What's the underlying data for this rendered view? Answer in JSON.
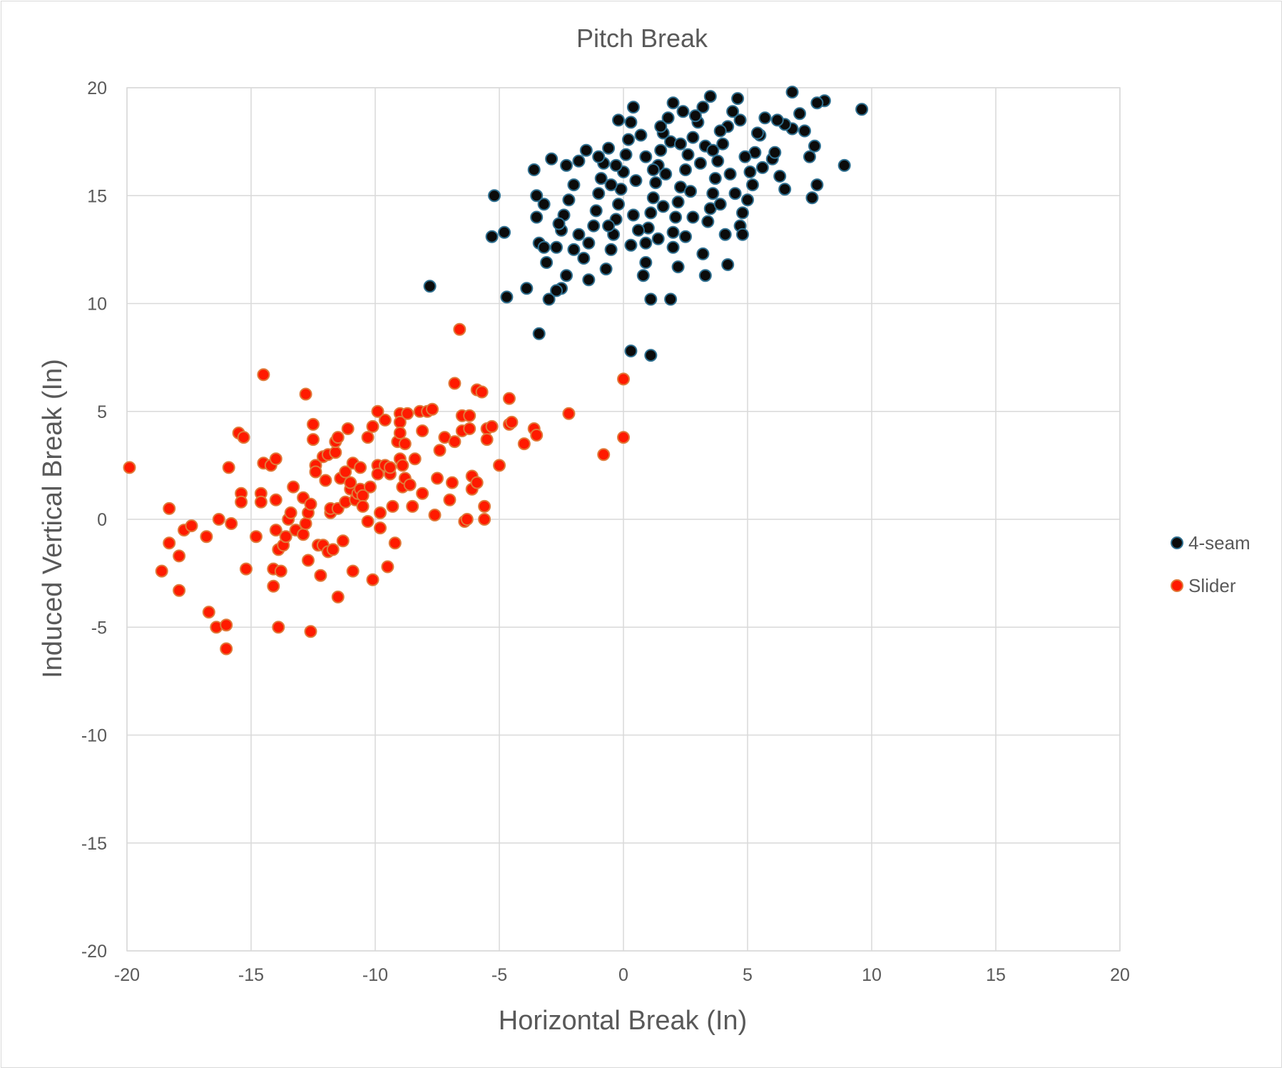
{
  "chart_data": {
    "type": "scatter",
    "title": "Pitch Break",
    "xlabel": "Horizontal Break (In)",
    "ylabel": "Induced Vertical Break (In)",
    "xlim": [
      -20,
      20
    ],
    "ylim": [
      -20,
      20
    ],
    "xticks": [
      "-20",
      "-15",
      "-10",
      "-5",
      "0",
      "5",
      "10",
      "15",
      "20"
    ],
    "yticks": [
      "20",
      "15",
      "10",
      "5",
      "0",
      "-5",
      "-10",
      "-15",
      "-20"
    ],
    "grid": true,
    "legend_position": "right",
    "series": [
      {
        "name": "4-seam",
        "color": "#0b0b0b",
        "edge_color": "#2f6f8f",
        "points": [
          [
            6.8,
            19.8
          ],
          [
            9.6,
            19.0
          ],
          [
            8.1,
            19.4
          ],
          [
            7.8,
            19.3
          ],
          [
            8.9,
            16.4
          ],
          [
            7.7,
            17.3
          ],
          [
            7.8,
            15.5
          ],
          [
            7.6,
            14.9
          ],
          [
            7.3,
            18.0
          ],
          [
            7.1,
            18.8
          ],
          [
            6.8,
            18.1
          ],
          [
            6.5,
            18.3
          ],
          [
            6.2,
            18.5
          ],
          [
            6.0,
            16.7
          ],
          [
            6.3,
            15.9
          ],
          [
            6.5,
            15.3
          ],
          [
            5.7,
            18.6
          ],
          [
            5.5,
            17.8
          ],
          [
            5.3,
            17.0
          ],
          [
            5.1,
            16.1
          ],
          [
            5.2,
            15.5
          ],
          [
            5.0,
            14.8
          ],
          [
            4.8,
            14.2
          ],
          [
            4.7,
            13.6
          ],
          [
            4.8,
            13.2
          ],
          [
            4.6,
            19.5
          ],
          [
            4.4,
            18.9
          ],
          [
            4.2,
            18.2
          ],
          [
            4.0,
            17.4
          ],
          [
            3.8,
            16.6
          ],
          [
            3.7,
            15.8
          ],
          [
            3.6,
            15.1
          ],
          [
            3.5,
            14.4
          ],
          [
            3.4,
            13.8
          ],
          [
            3.2,
            12.3
          ],
          [
            3.3,
            11.3
          ],
          [
            4.2,
            11.8
          ],
          [
            3.5,
            19.6
          ],
          [
            3.2,
            19.1
          ],
          [
            3.0,
            18.4
          ],
          [
            2.8,
            17.7
          ],
          [
            2.6,
            16.9
          ],
          [
            2.5,
            16.2
          ],
          [
            2.3,
            15.4
          ],
          [
            2.2,
            14.7
          ],
          [
            2.1,
            14.0
          ],
          [
            2.0,
            13.3
          ],
          [
            2.2,
            11.7
          ],
          [
            1.9,
            10.2
          ],
          [
            2.0,
            19.3
          ],
          [
            1.8,
            18.6
          ],
          [
            1.6,
            17.9
          ],
          [
            1.5,
            17.1
          ],
          [
            1.4,
            16.4
          ],
          [
            1.3,
            15.6
          ],
          [
            1.2,
            14.9
          ],
          [
            1.1,
            14.2
          ],
          [
            1.0,
            13.5
          ],
          [
            0.9,
            12.8
          ],
          [
            0.9,
            11.9
          ],
          [
            0.8,
            11.3
          ],
          [
            1.1,
            10.2
          ],
          [
            0.3,
            7.8
          ],
          [
            1.1,
            7.6
          ],
          [
            0.4,
            19.1
          ],
          [
            0.3,
            18.4
          ],
          [
            0.2,
            17.6
          ],
          [
            0.1,
            16.9
          ],
          [
            0.0,
            16.1
          ],
          [
            -0.1,
            15.3
          ],
          [
            -0.2,
            14.6
          ],
          [
            -0.3,
            13.9
          ],
          [
            -0.4,
            13.2
          ],
          [
            -0.5,
            12.5
          ],
          [
            -0.6,
            17.2
          ],
          [
            -0.8,
            16.5
          ],
          [
            -0.9,
            15.8
          ],
          [
            -1.0,
            15.1
          ],
          [
            -1.1,
            14.3
          ],
          [
            -1.2,
            13.6
          ],
          [
            -1.4,
            12.8
          ],
          [
            -1.6,
            12.1
          ],
          [
            -1.4,
            11.1
          ],
          [
            -0.7,
            11.6
          ],
          [
            -1.5,
            17.1
          ],
          [
            -1.8,
            16.6
          ],
          [
            -2.0,
            15.5
          ],
          [
            -2.2,
            14.8
          ],
          [
            -2.4,
            14.1
          ],
          [
            -2.5,
            13.4
          ],
          [
            -2.7,
            12.6
          ],
          [
            -2.3,
            11.3
          ],
          [
            -2.5,
            10.7
          ],
          [
            -2.7,
            10.6
          ],
          [
            -3.0,
            10.2
          ],
          [
            -2.3,
            16.4
          ],
          [
            -2.9,
            16.7
          ],
          [
            -3.2,
            14.6
          ],
          [
            -3.5,
            14.0
          ],
          [
            -3.4,
            12.8
          ],
          [
            -3.1,
            11.9
          ],
          [
            -3.9,
            10.7
          ],
          [
            -4.7,
            10.3
          ],
          [
            -3.4,
            8.6
          ],
          [
            -3.6,
            16.2
          ],
          [
            -3.5,
            15.0
          ],
          [
            -3.2,
            12.6
          ],
          [
            -4.8,
            13.3
          ],
          [
            -5.3,
            13.1
          ],
          [
            -5.2,
            15.0
          ],
          [
            -7.8,
            10.8
          ],
          [
            2.4,
            18.9
          ],
          [
            2.9,
            18.7
          ],
          [
            3.9,
            18.0
          ],
          [
            1.5,
            18.2
          ],
          [
            0.7,
            17.8
          ],
          [
            4.9,
            16.8
          ],
          [
            5.6,
            16.3
          ],
          [
            4.3,
            16.0
          ],
          [
            3.1,
            16.5
          ],
          [
            1.7,
            16.0
          ],
          [
            0.5,
            15.7
          ],
          [
            -0.3,
            16.4
          ],
          [
            2.7,
            15.2
          ],
          [
            1.6,
            14.5
          ],
          [
            0.4,
            14.1
          ],
          [
            3.9,
            14.6
          ],
          [
            4.5,
            15.1
          ],
          [
            2.5,
            13.1
          ],
          [
            1.4,
            13.0
          ],
          [
            0.3,
            12.7
          ],
          [
            -0.6,
            13.6
          ],
          [
            -1.8,
            13.2
          ],
          [
            -2.0,
            12.5
          ],
          [
            3.3,
            17.3
          ],
          [
            1.9,
            17.5
          ],
          [
            0.9,
            16.8
          ],
          [
            -0.5,
            15.5
          ],
          [
            5.4,
            17.9
          ],
          [
            6.1,
            17.0
          ],
          [
            7.5,
            16.8
          ],
          [
            2.0,
            12.6
          ],
          [
            -1.0,
            16.8
          ],
          [
            -0.2,
            18.5
          ],
          [
            2.8,
            14.0
          ],
          [
            4.1,
            13.2
          ],
          [
            1.2,
            16.2
          ],
          [
            2.3,
            17.4
          ],
          [
            3.6,
            17.1
          ],
          [
            0.6,
            13.4
          ],
          [
            -2.6,
            13.7
          ],
          [
            4.7,
            18.5
          ]
        ]
      },
      {
        "name": "Slider",
        "color": "#ff1a00",
        "edge_color": "#e07a3a",
        "points": [
          [
            -19.9,
            2.4
          ],
          [
            -18.6,
            -2.4
          ],
          [
            -18.3,
            0.5
          ],
          [
            -18.3,
            -1.1
          ],
          [
            -17.9,
            -1.7
          ],
          [
            -17.9,
            -3.3
          ],
          [
            -17.7,
            -0.5
          ],
          [
            -17.4,
            -0.3
          ],
          [
            -16.8,
            -0.8
          ],
          [
            -16.7,
            -4.3
          ],
          [
            -16.4,
            -5.0
          ],
          [
            -16.3,
            0.0
          ],
          [
            -16.0,
            -4.9
          ],
          [
            -16.0,
            -6.0
          ],
          [
            -15.9,
            2.4
          ],
          [
            -15.8,
            -0.2
          ],
          [
            -15.5,
            4.0
          ],
          [
            -15.3,
            3.8
          ],
          [
            -15.4,
            1.2
          ],
          [
            -15.4,
            0.8
          ],
          [
            -15.2,
            -2.3
          ],
          [
            -14.8,
            -0.8
          ],
          [
            -14.6,
            1.2
          ],
          [
            -14.6,
            0.8
          ],
          [
            -14.5,
            2.6
          ],
          [
            -14.5,
            6.7
          ],
          [
            -14.2,
            2.5
          ],
          [
            -14.1,
            -2.3
          ],
          [
            -14.1,
            -3.1
          ],
          [
            -14.0,
            2.8
          ],
          [
            -14.0,
            0.9
          ],
          [
            -14.0,
            -0.5
          ],
          [
            -13.9,
            -1.4
          ],
          [
            -13.9,
            -5.0
          ],
          [
            -13.8,
            -2.4
          ],
          [
            -13.7,
            -1.2
          ],
          [
            -13.6,
            -0.8
          ],
          [
            -13.5,
            0.0
          ],
          [
            -13.4,
            0.3
          ],
          [
            -13.3,
            1.5
          ],
          [
            -13.2,
            -0.5
          ],
          [
            -12.9,
            1.0
          ],
          [
            -12.9,
            -0.7
          ],
          [
            -12.8,
            5.8
          ],
          [
            -12.8,
            -0.2
          ],
          [
            -12.7,
            0.3
          ],
          [
            -12.7,
            -1.9
          ],
          [
            -12.6,
            -5.2
          ],
          [
            -12.6,
            0.7
          ],
          [
            -12.5,
            4.4
          ],
          [
            -12.5,
            3.7
          ],
          [
            -12.4,
            2.5
          ],
          [
            -12.4,
            2.2
          ],
          [
            -12.3,
            -1.2
          ],
          [
            -12.2,
            -2.6
          ],
          [
            -12.1,
            2.9
          ],
          [
            -12.1,
            -1.2
          ],
          [
            -12.0,
            1.8
          ],
          [
            -11.9,
            3.0
          ],
          [
            -11.9,
            -1.5
          ],
          [
            -11.8,
            0.3
          ],
          [
            -11.8,
            0.5
          ],
          [
            -11.7,
            -1.4
          ],
          [
            -11.6,
            3.1
          ],
          [
            -11.6,
            3.6
          ],
          [
            -11.5,
            3.8
          ],
          [
            -11.5,
            0.5
          ],
          [
            -11.5,
            -3.6
          ],
          [
            -11.4,
            1.9
          ],
          [
            -11.3,
            -1.0
          ],
          [
            -11.2,
            0.8
          ],
          [
            -11.2,
            2.2
          ],
          [
            -11.1,
            4.2
          ],
          [
            -11.0,
            1.4
          ],
          [
            -11.0,
            1.7
          ],
          [
            -10.9,
            2.6
          ],
          [
            -10.9,
            -2.4
          ],
          [
            -10.8,
            0.9
          ],
          [
            -10.7,
            1.2
          ],
          [
            -10.6,
            2.4
          ],
          [
            -10.6,
            1.4
          ],
          [
            -10.5,
            1.1
          ],
          [
            -10.5,
            0.6
          ],
          [
            -10.3,
            3.8
          ],
          [
            -10.3,
            -0.1
          ],
          [
            -10.2,
            1.5
          ],
          [
            -10.1,
            4.3
          ],
          [
            -10.1,
            -2.8
          ],
          [
            -9.9,
            5.0
          ],
          [
            -9.9,
            2.5
          ],
          [
            -9.9,
            2.1
          ],
          [
            -9.8,
            -0.4
          ],
          [
            -9.8,
            0.3
          ],
          [
            -9.6,
            4.6
          ],
          [
            -9.6,
            2.5
          ],
          [
            -9.5,
            -2.2
          ],
          [
            -9.4,
            2.1
          ],
          [
            -9.4,
            2.4
          ],
          [
            -9.3,
            0.6
          ],
          [
            -9.2,
            -1.1
          ],
          [
            -9.1,
            3.6
          ],
          [
            -9.0,
            4.9
          ],
          [
            -9.0,
            4.5
          ],
          [
            -9.0,
            4.0
          ],
          [
            -9.0,
            2.8
          ],
          [
            -8.9,
            2.5
          ],
          [
            -8.9,
            1.5
          ],
          [
            -8.8,
            3.5
          ],
          [
            -8.8,
            1.9
          ],
          [
            -8.7,
            4.9
          ],
          [
            -8.6,
            1.6
          ],
          [
            -8.5,
            0.6
          ],
          [
            -8.4,
            2.8
          ],
          [
            -8.2,
            5.0
          ],
          [
            -8.1,
            1.2
          ],
          [
            -8.1,
            4.1
          ],
          [
            -7.9,
            5.0
          ],
          [
            -7.7,
            5.1
          ],
          [
            -7.6,
            0.2
          ],
          [
            -7.5,
            1.9
          ],
          [
            -7.4,
            3.2
          ],
          [
            -7.2,
            3.8
          ],
          [
            -7.0,
            0.9
          ],
          [
            -6.9,
            1.7
          ],
          [
            -6.8,
            6.3
          ],
          [
            -6.8,
            3.6
          ],
          [
            -6.6,
            8.8
          ],
          [
            -6.5,
            4.1
          ],
          [
            -6.5,
            4.8
          ],
          [
            -6.4,
            -0.1
          ],
          [
            -6.3,
            0.0
          ],
          [
            -6.2,
            4.8
          ],
          [
            -6.2,
            4.2
          ],
          [
            -6.1,
            2.0
          ],
          [
            -6.1,
            1.4
          ],
          [
            -5.9,
            1.7
          ],
          [
            -5.9,
            6.0
          ],
          [
            -5.7,
            5.9
          ],
          [
            -5.6,
            0.6
          ],
          [
            -5.6,
            0.0
          ],
          [
            -5.5,
            4.2
          ],
          [
            -5.5,
            3.7
          ],
          [
            -5.3,
            4.3
          ],
          [
            -5.0,
            2.5
          ],
          [
            -4.6,
            5.6
          ],
          [
            -4.6,
            4.4
          ],
          [
            -4.5,
            4.5
          ],
          [
            -4.0,
            3.5
          ],
          [
            -3.6,
            4.2
          ],
          [
            -3.5,
            3.9
          ],
          [
            -2.2,
            4.9
          ],
          [
            -0.8,
            3.0
          ],
          [
            0.0,
            6.5
          ],
          [
            0.0,
            3.8
          ]
        ]
      }
    ]
  }
}
